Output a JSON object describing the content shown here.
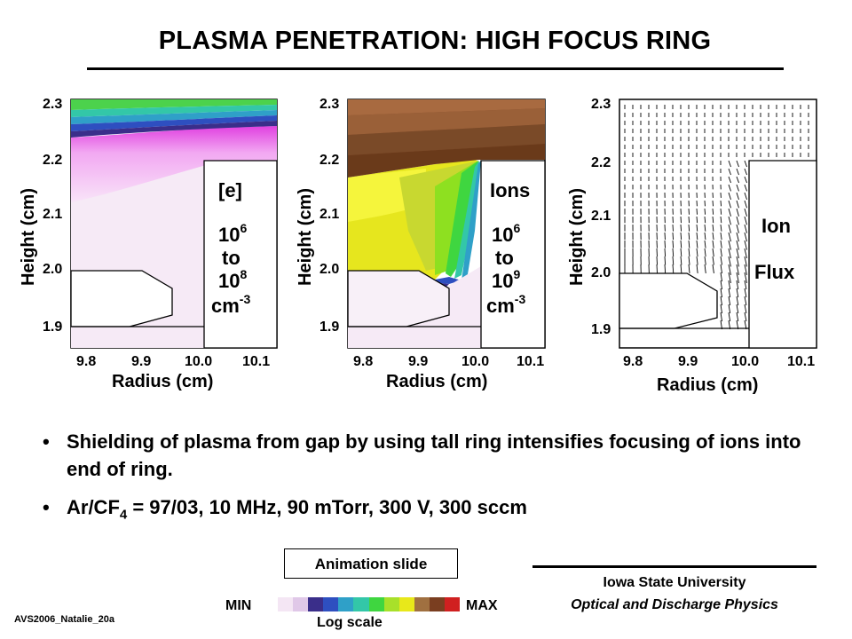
{
  "title": "PLASMA PENETRATION: HIGH FOCUS RING",
  "bullets": [
    {
      "text": "Shielding of plasma from gap by using tall ring intensifies focusing of ions into end of ring."
    },
    {
      "pre": "Ar/CF",
      "sub": "4",
      "post": " = 97/03, 10 MHz, 90 mTorr, 300 V, 300 sccm"
    }
  ],
  "animation_label": "Animation slide",
  "scale": {
    "min": "MIN",
    "max": "MAX",
    "label": "Log scale",
    "colors": [
      "#ffffff",
      "#f4e6f4",
      "#e0c8e8",
      "#3a2e8a",
      "#2e4fc0",
      "#2fa0c8",
      "#33c7a8",
      "#3fd640",
      "#a8e02a",
      "#e8e81a",
      "#a07040",
      "#7a3e20",
      "#d02020"
    ]
  },
  "footer_id": "AVS2006_Natalie_20a",
  "affiliation": {
    "line1": "Iowa State University",
    "line2": "Optical and Discharge Physics"
  },
  "chart_data": [
    {
      "type": "heatmap",
      "title": "",
      "xlabel": "Radius (cm)",
      "ylabel": "Height (cm)",
      "xticks": [
        "9.8",
        "9.9",
        "10.0",
        "10.1"
      ],
      "yticks": [
        "1.9",
        "2.0",
        "2.1",
        "2.2",
        "2.3"
      ],
      "xlim": [
        9.75,
        10.12
      ],
      "ylim": [
        1.87,
        2.31
      ],
      "annotation": {
        "species": "[e]",
        "base1": "10",
        "exp1": "6",
        "to": "to",
        "base2": "10",
        "exp2": "8",
        "unit": "cm",
        "unit_exp": "-3"
      }
    },
    {
      "type": "heatmap",
      "title": "",
      "xlabel": "Radius (cm)",
      "ylabel": "Height (cm)",
      "xticks": [
        "9.8",
        "9.9",
        "10.0",
        "10.1"
      ],
      "yticks": [
        "1.9",
        "2.0",
        "2.1",
        "2.2",
        "2.3"
      ],
      "xlim": [
        9.75,
        10.12
      ],
      "ylim": [
        1.87,
        2.31
      ],
      "annotation": {
        "species": "Ions",
        "base1": "10",
        "exp1": "6",
        "to": "to",
        "base2": "10",
        "exp2": "9",
        "unit": "cm",
        "unit_exp": "-3"
      }
    },
    {
      "type": "vector-field",
      "title": "",
      "xlabel": "Radius (cm)",
      "ylabel": "Height (cm)",
      "xticks": [
        "9.8",
        "9.9",
        "10.0",
        "10.1"
      ],
      "yticks": [
        "1.9",
        "2.0",
        "2.1",
        "2.2",
        "2.3"
      ],
      "xlim": [
        9.75,
        10.12
      ],
      "ylim": [
        1.87,
        2.31
      ],
      "annotation": {
        "line1": "Ion",
        "line2": "Flux"
      }
    }
  ]
}
